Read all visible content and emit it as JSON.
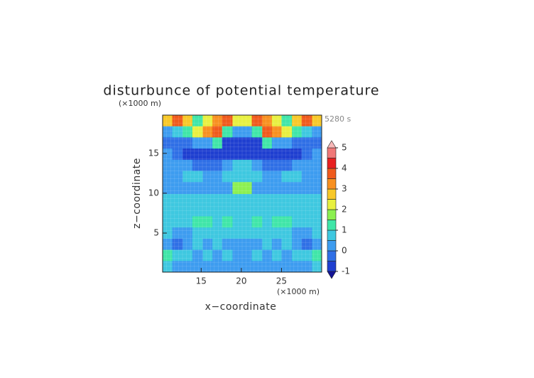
{
  "chart_data": {
    "type": "heatmap",
    "title": "disturbunce of potential temperature",
    "y_unit": "(×1000 m)",
    "x_unit": "(×1000 m)",
    "time_label": "5280 s",
    "x_label": "x−coordinate",
    "y_label": "z−coordinate",
    "xlim": [
      10.2,
      30.0
    ],
    "ylim": [
      0.1,
      19.8
    ],
    "xticks": [
      15,
      20,
      25
    ],
    "yticks": [
      5,
      10,
      15
    ],
    "x_edges": [
      10.2,
      11.4,
      12.7,
      13.9,
      15.2,
      16.4,
      17.6,
      18.9,
      20.1,
      21.3,
      22.6,
      23.8,
      25.0,
      26.3,
      27.5,
      28.8,
      30.0
    ],
    "y_edges": [
      19.8,
      18.4,
      17.0,
      15.6,
      14.2,
      12.8,
      11.4,
      9.9,
      8.5,
      7.1,
      5.7,
      4.3,
      2.9,
      1.5,
      0.1
    ],
    "z": [
      [
        2.5,
        3.5,
        2.5,
        1,
        2,
        3,
        3.5,
        2,
        2,
        3.5,
        3,
        2,
        1,
        2.5,
        3.5,
        2.5
      ],
      [
        0,
        0.5,
        1,
        2,
        3,
        3.5,
        1,
        0,
        0,
        1,
        3.5,
        3,
        2,
        1,
        0.5,
        0
      ],
      [
        -0.3,
        -0.3,
        -0.3,
        0,
        0.3,
        1,
        -0.8,
        -0.8,
        -0.8,
        -0.8,
        1,
        0.3,
        0,
        -0.3,
        -0.3,
        -0.3
      ],
      [
        0.3,
        -0.3,
        -0.6,
        -0.8,
        -0.8,
        -0.8,
        -0.8,
        -0.8,
        -0.8,
        -0.8,
        -0.8,
        -0.8,
        -0.8,
        -0.6,
        -0.3,
        0.3
      ],
      [
        0.3,
        0.3,
        0.3,
        -0.3,
        -0.3,
        -0.3,
        0.3,
        0.7,
        0.7,
        0.3,
        -0.3,
        -0.3,
        -0.3,
        0.3,
        0.3,
        0.3
      ],
      [
        0.3,
        0.3,
        0.7,
        0.7,
        0.3,
        0.3,
        0.7,
        0.8,
        0.8,
        0.7,
        0.3,
        0.3,
        0.7,
        0.7,
        0.3,
        0.3
      ],
      [
        0.3,
        0.3,
        0.3,
        0.3,
        0.3,
        0.3,
        0.3,
        1.6,
        1.6,
        0.3,
        0.3,
        0.3,
        0.3,
        0.3,
        0.3,
        0.3
      ],
      [
        0.7,
        0.7,
        0.7,
        0.7,
        0.7,
        0.7,
        0.7,
        0.8,
        0.8,
        0.7,
        0.7,
        0.7,
        0.7,
        0.7,
        0.7,
        0.7
      ],
      [
        0.7,
        0.8,
        0.8,
        0.8,
        0.8,
        0.8,
        0.8,
        0.8,
        0.8,
        0.8,
        0.8,
        0.8,
        0.8,
        0.8,
        0.8,
        0.7
      ],
      [
        0.8,
        0.8,
        0.8,
        1.2,
        1.2,
        0.8,
        1.2,
        0.8,
        0.8,
        1.2,
        0.8,
        1.2,
        1.2,
        0.8,
        0.8,
        0.8
      ],
      [
        0.7,
        0.3,
        0.3,
        0.7,
        0.7,
        0.7,
        0.7,
        0.7,
        0.7,
        0.7,
        0.7,
        0.7,
        0.7,
        0.3,
        0.3,
        0.7
      ],
      [
        0.3,
        -0.3,
        0.3,
        0.7,
        0.3,
        0.7,
        0.3,
        0.3,
        0.3,
        0.3,
        0.7,
        0.3,
        0.7,
        0.3,
        -0.3,
        0.3
      ],
      [
        1.2,
        0.7,
        0.7,
        0.3,
        0.7,
        0.3,
        0.7,
        0.3,
        0.3,
        0.7,
        0.3,
        0.7,
        0.3,
        0.7,
        0.7,
        1.2
      ],
      [
        0.7,
        0.3,
        0.3,
        0.3,
        0.3,
        0.3,
        0.3,
        0.3,
        0.3,
        0.3,
        0.3,
        0.3,
        0.3,
        0.3,
        0.3,
        0.7
      ]
    ],
    "levels": [
      -1,
      -0.5,
      0,
      0.5,
      1,
      1.5,
      2,
      2.5,
      3,
      3.5,
      4,
      4.5,
      5
    ],
    "colors": [
      "#1f3fd0",
      "#2f6fe6",
      "#3d9cf0",
      "#3ec8e0",
      "#3fe6a8",
      "#8cf050",
      "#e8f040",
      "#f8c828",
      "#f89020",
      "#f05a1c",
      "#e82020",
      "#f07878"
    ],
    "under_color": "#141496",
    "over_color": "#f8b8b8",
    "cbar_ticks": [
      -1,
      0,
      1,
      2,
      3,
      4,
      5
    ]
  }
}
